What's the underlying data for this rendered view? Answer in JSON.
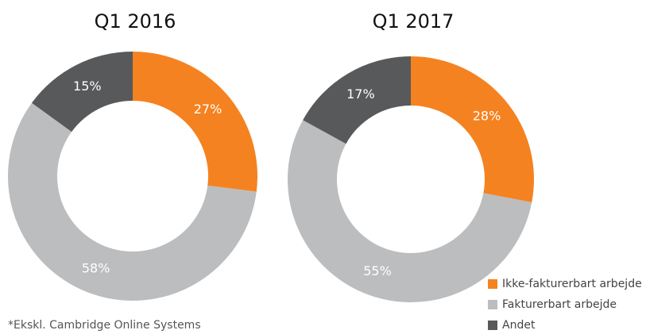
{
  "chart_data": [
    {
      "type": "donut",
      "title": "Q1 2016",
      "values": [
        27,
        58,
        15
      ],
      "value_labels": [
        "27%",
        "58%",
        "15%"
      ]
    },
    {
      "type": "donut",
      "title": "Q1 2017",
      "values": [
        28,
        55,
        17
      ],
      "value_labels": [
        "28%",
        "55%",
        "17%"
      ]
    }
  ],
  "legend": {
    "labels": [
      "Ikke-fakturerbart arbejde",
      "Fakturerbart arbejde",
      "Andet"
    ],
    "colors": [
      "#f58220",
      "#bcbdbf",
      "#58595b"
    ]
  },
  "note": "*Ekskl. Cambridge Online Systems"
}
